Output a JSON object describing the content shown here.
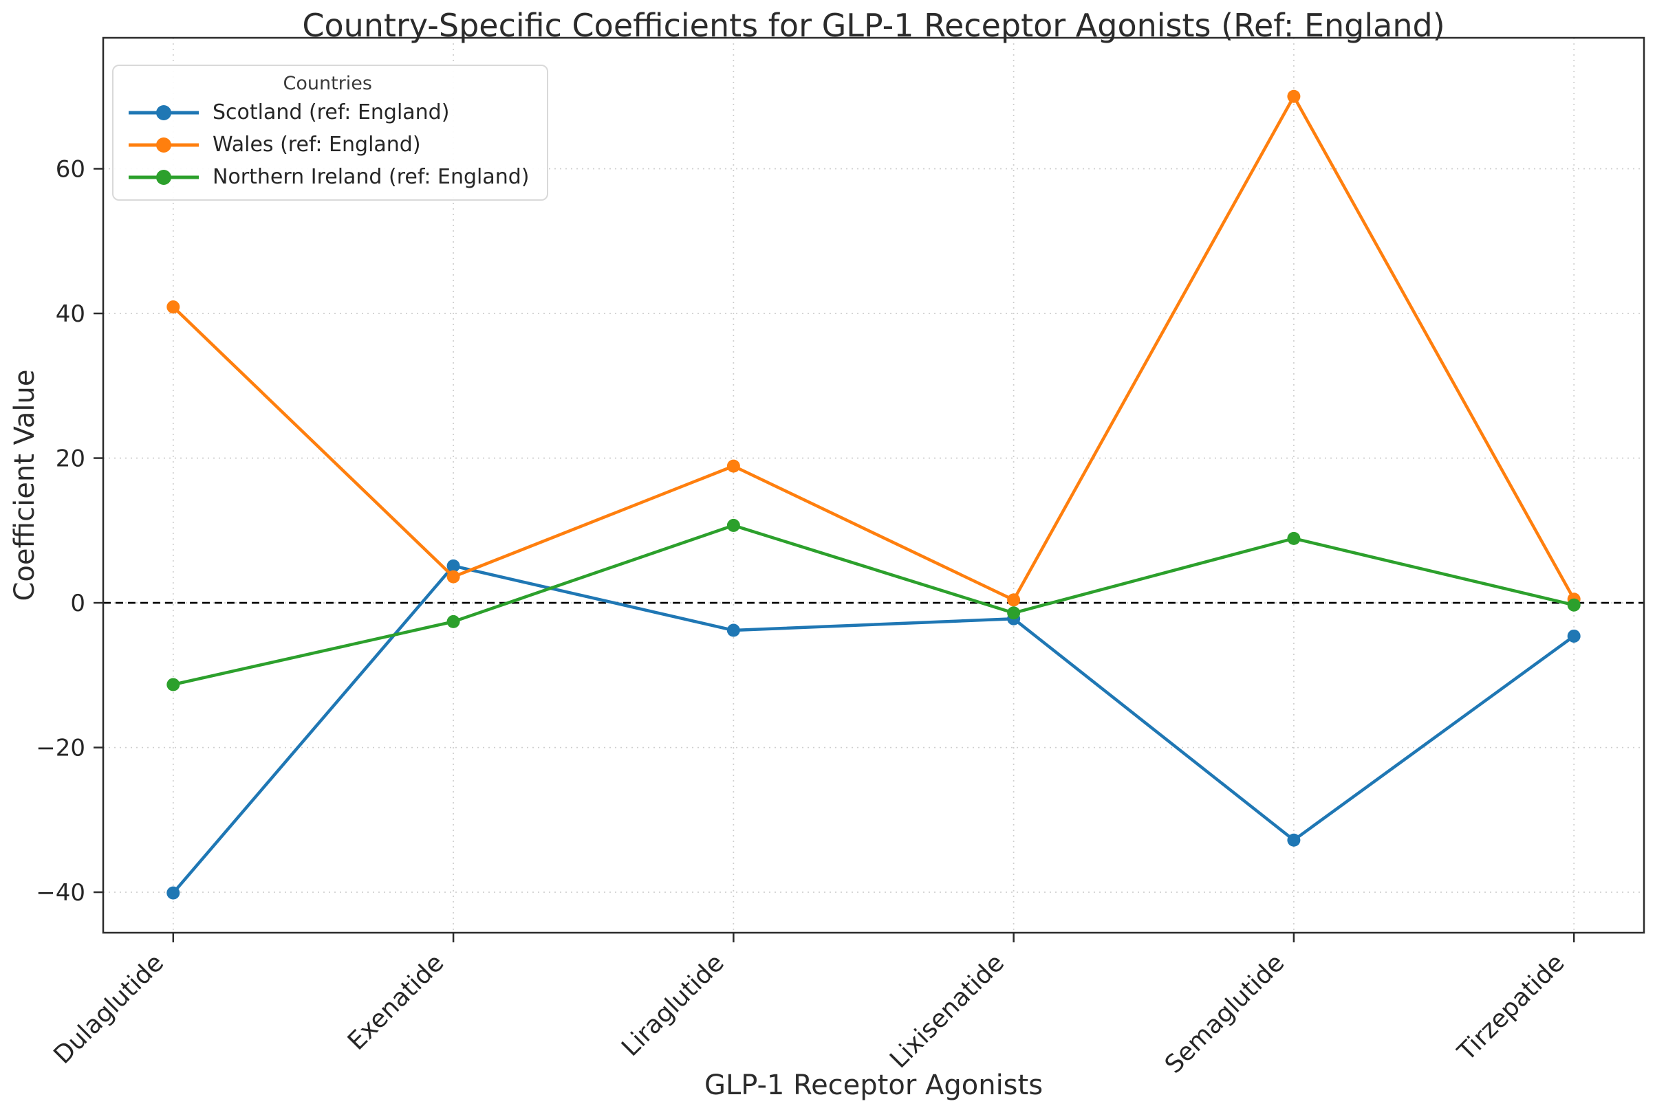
{
  "chart_data": {
    "type": "line",
    "title": "Country-Specific Coefficients for GLP-1 Receptor Agonists (Ref: England)",
    "xlabel": "GLP-1 Receptor Agonists",
    "ylabel": "Coefficient Value",
    "categories": [
      "Dulaglutide",
      "Exenatide",
      "Liraglutide",
      "Lixisenatide",
      "Semaglutide",
      "Tirzepatide"
    ],
    "series": [
      {
        "name": "Scotland (ref: England)",
        "color": "#1f77b4",
        "values": [
          -40.1,
          5.1,
          -3.8,
          -2.2,
          -32.8,
          -4.6
        ]
      },
      {
        "name": "Wales (ref: England)",
        "color": "#ff7f0e",
        "values": [
          40.9,
          3.6,
          18.9,
          0.4,
          70.0,
          0.5
        ]
      },
      {
        "name": "Northern Ireland (ref: England)",
        "color": "#2ca02c",
        "values": [
          -11.3,
          -2.6,
          10.7,
          -1.4,
          8.9,
          -0.3
        ]
      }
    ],
    "yticks": [
      -40,
      -20,
      0,
      20,
      40,
      60
    ],
    "ylim": [
      -45.6,
      78.1
    ],
    "xlim": [
      -0.25,
      5.25
    ],
    "grid": true,
    "grid_style": "dotted",
    "zero_line": true,
    "legend_title": "Countries",
    "legend_position": "upper left",
    "colors": {
      "text": "#262626",
      "spine": "#2b2b2b",
      "grid": "#cfcfcf",
      "zero_line": "#000000",
      "background": "#ffffff"
    }
  }
}
